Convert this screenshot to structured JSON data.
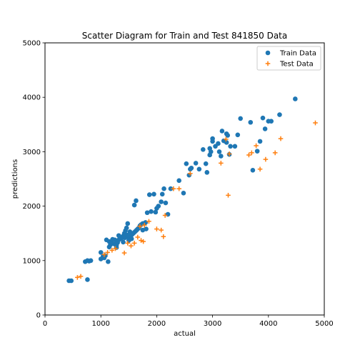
{
  "chart_data": {
    "type": "scatter",
    "title": "Scatter Diagram for Train and Test 841850 Data",
    "xlabel": "actual",
    "ylabel": "predictions",
    "xlim": [
      0,
      5000
    ],
    "ylim": [
      0,
      5000
    ],
    "xticks": [
      0,
      1000,
      2000,
      3000,
      4000,
      5000
    ],
    "yticks": [
      0,
      1000,
      2000,
      3000,
      4000,
      5000
    ],
    "grid": false,
    "legend_position": "top-right",
    "series": [
      {
        "name": "Train Data",
        "marker": "circle",
        "color": "#1f77b4",
        "points": [
          [
            430,
            630
          ],
          [
            470,
            630
          ],
          [
            760,
            650
          ],
          [
            720,
            980
          ],
          [
            790,
            990
          ],
          [
            760,
            1000
          ],
          [
            820,
            1000
          ],
          [
            1000,
            1030
          ],
          [
            1040,
            1080
          ],
          [
            1080,
            1090
          ],
          [
            1000,
            1150
          ],
          [
            1100,
            1380
          ],
          [
            1130,
            980
          ],
          [
            1150,
            1250
          ],
          [
            1170,
            1290
          ],
          [
            1190,
            1340
          ],
          [
            1210,
            1390
          ],
          [
            1250,
            1300
          ],
          [
            1280,
            1280
          ],
          [
            1300,
            1330
          ],
          [
            1320,
            1380
          ],
          [
            1350,
            1400
          ],
          [
            1380,
            1420
          ],
          [
            1400,
            1450
          ],
          [
            1420,
            1500
          ],
          [
            1440,
            1550
          ],
          [
            1460,
            1600
          ],
          [
            1480,
            1680
          ],
          [
            1500,
            1420
          ],
          [
            1520,
            1440
          ],
          [
            1540,
            1460
          ],
          [
            1560,
            1480
          ],
          [
            1580,
            1500
          ],
          [
            1600,
            1520
          ],
          [
            1620,
            1540
          ],
          [
            1640,
            1560
          ],
          [
            1660,
            1580
          ],
          [
            1680,
            1600
          ],
          [
            1700,
            1640
          ],
          [
            1720,
            1660
          ],
          [
            1750,
            1680
          ],
          [
            1750,
            1560
          ],
          [
            1800,
            1700
          ],
          [
            1810,
            1580
          ],
          [
            1830,
            1880
          ],
          [
            1870,
            2210
          ],
          [
            1900,
            1900
          ],
          [
            1950,
            2220
          ],
          [
            1980,
            1890
          ],
          [
            2000,
            1960
          ],
          [
            2030,
            2000
          ],
          [
            2080,
            2080
          ],
          [
            2100,
            2220
          ],
          [
            2130,
            2320
          ],
          [
            2160,
            2060
          ],
          [
            2200,
            1850
          ],
          [
            2250,
            2320
          ],
          [
            2400,
            2470
          ],
          [
            2480,
            2240
          ],
          [
            2530,
            2780
          ],
          [
            2580,
            2570
          ],
          [
            2600,
            2680
          ],
          [
            2620,
            2700
          ],
          [
            2700,
            2790
          ],
          [
            2760,
            2680
          ],
          [
            2830,
            3040
          ],
          [
            2880,
            2780
          ],
          [
            2900,
            2620
          ],
          [
            2950,
            2940
          ],
          [
            2970,
            3000
          ],
          [
            3000,
            3240
          ],
          [
            3050,
            3100
          ],
          [
            3100,
            3150
          ],
          [
            3120,
            3000
          ],
          [
            3150,
            2920
          ],
          [
            3170,
            3380
          ],
          [
            3200,
            3200
          ],
          [
            3250,
            3330
          ],
          [
            3270,
            3300
          ],
          [
            3300,
            2950
          ],
          [
            3320,
            3100
          ],
          [
            3400,
            3100
          ],
          [
            3450,
            3310
          ],
          [
            3500,
            3610
          ],
          [
            3680,
            3540
          ],
          [
            3720,
            2660
          ],
          [
            3800,
            3010
          ],
          [
            3850,
            3190
          ],
          [
            3900,
            3620
          ],
          [
            3940,
            3420
          ],
          [
            4000,
            3560
          ],
          [
            4050,
            3560
          ],
          [
            4200,
            3680
          ],
          [
            4480,
            3970
          ],
          [
            1150,
            1350
          ],
          [
            1250,
            1380
          ],
          [
            1320,
            1460
          ],
          [
            1400,
            1340
          ],
          [
            1430,
            1420
          ],
          [
            1470,
            1470
          ],
          [
            1520,
            1530
          ],
          [
            1550,
            1400
          ],
          [
            1600,
            2020
          ],
          [
            1630,
            2100
          ],
          [
            1060,
            1050
          ],
          [
            1180,
            1300
          ],
          [
            1280,
            1240
          ],
          [
            1500,
            1370
          ],
          [
            2950,
            3060
          ],
          [
            3000,
            3190
          ],
          [
            3250,
            3170
          ]
        ]
      },
      {
        "name": "Test Data",
        "marker": "plus",
        "color": "#ff7f0e",
        "points": [
          [
            580,
            690
          ],
          [
            640,
            710
          ],
          [
            1060,
            1110
          ],
          [
            1120,
            1150
          ],
          [
            1200,
            1190
          ],
          [
            1260,
            1220
          ],
          [
            1420,
            1140
          ],
          [
            1480,
            1320
          ],
          [
            1540,
            1270
          ],
          [
            1600,
            1320
          ],
          [
            1660,
            1430
          ],
          [
            1720,
            1370
          ],
          [
            1760,
            1350
          ],
          [
            1780,
            1650
          ],
          [
            1860,
            1720
          ],
          [
            2000,
            1580
          ],
          [
            2080,
            1560
          ],
          [
            2120,
            1440
          ],
          [
            2150,
            1830
          ],
          [
            2300,
            2320
          ],
          [
            2400,
            2320
          ],
          [
            3150,
            2790
          ],
          [
            3240,
            3230
          ],
          [
            3280,
            2200
          ],
          [
            3300,
            2960
          ],
          [
            3650,
            2940
          ],
          [
            3700,
            2980
          ],
          [
            3780,
            3110
          ],
          [
            3850,
            2680
          ],
          [
            3950,
            2860
          ],
          [
            4120,
            2980
          ],
          [
            4220,
            3240
          ],
          [
            4840,
            3530
          ],
          [
            2600,
            2600
          ],
          [
            1700,
            1630
          ]
        ]
      }
    ]
  }
}
